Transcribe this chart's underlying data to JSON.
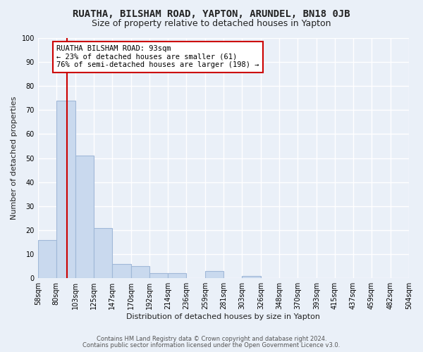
{
  "title1": "RUATHA, BILSHAM ROAD, YAPTON, ARUNDEL, BN18 0JB",
  "title2": "Size of property relative to detached houses in Yapton",
  "xlabel": "Distribution of detached houses by size in Yapton",
  "ylabel": "Number of detached properties",
  "bin_edges": [
    58,
    80,
    103,
    125,
    147,
    170,
    192,
    214,
    236,
    259,
    281,
    303,
    326,
    348,
    370,
    393,
    415,
    437,
    459,
    482,
    504
  ],
  "bin_labels": [
    "58sqm",
    "80sqm",
    "103sqm",
    "125sqm",
    "147sqm",
    "170sqm",
    "192sqm",
    "214sqm",
    "236sqm",
    "259sqm",
    "281sqm",
    "303sqm",
    "326sqm",
    "348sqm",
    "370sqm",
    "393sqm",
    "415sqm",
    "437sqm",
    "459sqm",
    "482sqm",
    "504sqm"
  ],
  "heights": [
    16,
    74,
    51,
    21,
    6,
    5,
    2,
    2,
    0,
    3,
    0,
    1,
    0,
    0,
    0,
    0,
    0,
    0,
    0,
    0
  ],
  "bar_color": "#c9d9ee",
  "bar_edge_color": "#a0b8d8",
  "property_size": 93,
  "vline_color": "#cc0000",
  "annotation_line1": "RUATHA BILSHAM ROAD: 93sqm",
  "annotation_line2": "← 23% of detached houses are smaller (61)",
  "annotation_line3": "76% of semi-detached houses are larger (198) →",
  "annotation_box_color": "white",
  "annotation_box_edge": "#cc0000",
  "ylim": [
    0,
    100
  ],
  "yticks": [
    0,
    10,
    20,
    30,
    40,
    50,
    60,
    70,
    80,
    90,
    100
  ],
  "footnote1": "Contains HM Land Registry data © Crown copyright and database right 2024.",
  "footnote2": "Contains public sector information licensed under the Open Government Licence v3.0.",
  "background_color": "#eaf0f8",
  "plot_bg_color": "#eaf0f8",
  "title1_fontsize": 10,
  "title2_fontsize": 9,
  "grid_color": "white",
  "font_color": "#222222",
  "annotation_fontsize": 7.5,
  "axis_label_fontsize": 8,
  "tick_fontsize": 7
}
